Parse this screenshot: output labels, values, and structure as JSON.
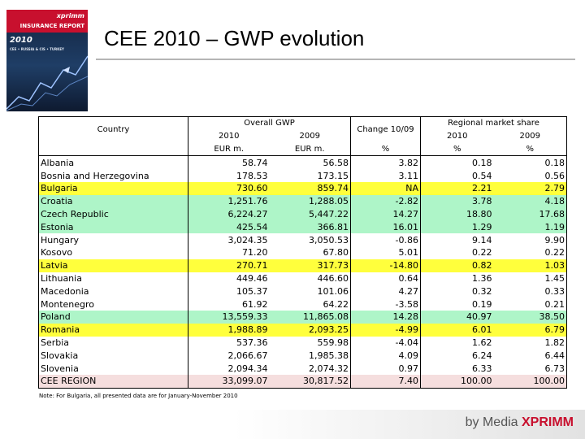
{
  "cover": {
    "brand": "xprimm",
    "title": "INSURANCE REPORT",
    "year": "2010",
    "subtitle": "CEE • RUSSIA & CIS • TURKEY"
  },
  "slide": {
    "title": "CEE 2010 – GWP evolution",
    "note": "Note: For Bulgaria, all presented data are for January-November 2010",
    "footer_prefix": "by Media ",
    "footer_brand": "XPRIMM"
  },
  "table": {
    "header": {
      "country": "Country",
      "overall_gwp": "Overall GWP",
      "change": "Change 10/09",
      "regional_share": "Regional market share",
      "year_2010": "2010",
      "year_2009": "2009",
      "unit_eur": "EUR m.",
      "unit_pct": "%"
    },
    "rows": [
      {
        "country": "Albania",
        "gwp2010": "58.74",
        "gwp2009": "56.58",
        "change": "3.82",
        "share2010": "0.18",
        "share2009": "0.18",
        "highlight": "white"
      },
      {
        "country": "Bosnia and Herzegovina",
        "gwp2010": "178.53",
        "gwp2009": "173.15",
        "change": "3.11",
        "share2010": "0.54",
        "share2009": "0.56",
        "highlight": "white"
      },
      {
        "country": "Bulgaria",
        "gwp2010": "730.60",
        "gwp2009": "859.74",
        "change": "NA",
        "share2010": "2.21",
        "share2009": "2.79",
        "highlight": "yellow"
      },
      {
        "country": "Croatia",
        "gwp2010": "1,251.76",
        "gwp2009": "1,288.05",
        "change": "-2.82",
        "share2010": "3.78",
        "share2009": "4.18",
        "highlight": "green"
      },
      {
        "country": "Czech Republic",
        "gwp2010": "6,224.27",
        "gwp2009": "5,447.22",
        "change": "14.27",
        "share2010": "18.80",
        "share2009": "17.68",
        "highlight": "green"
      },
      {
        "country": "Estonia",
        "gwp2010": "425.54",
        "gwp2009": "366.81",
        "change": "16.01",
        "share2010": "1.29",
        "share2009": "1.19",
        "highlight": "green"
      },
      {
        "country": "Hungary",
        "gwp2010": "3,024.35",
        "gwp2009": "3,050.53",
        "change": "-0.86",
        "share2010": "9.14",
        "share2009": "9.90",
        "highlight": "white"
      },
      {
        "country": "Kosovo",
        "gwp2010": "71.20",
        "gwp2009": "67.80",
        "change": "5.01",
        "share2010": "0.22",
        "share2009": "0.22",
        "highlight": "white"
      },
      {
        "country": "Latvia",
        "gwp2010": "270.71",
        "gwp2009": "317.73",
        "change": "-14.80",
        "share2010": "0.82",
        "share2009": "1.03",
        "highlight": "yellow"
      },
      {
        "country": "Lithuania",
        "gwp2010": "449.46",
        "gwp2009": "446.60",
        "change": "0.64",
        "share2010": "1.36",
        "share2009": "1.45",
        "highlight": "white"
      },
      {
        "country": "Macedonia",
        "gwp2010": "105.37",
        "gwp2009": "101.06",
        "change": "4.27",
        "share2010": "0.32",
        "share2009": "0.33",
        "highlight": "white"
      },
      {
        "country": "Montenegro",
        "gwp2010": "61.92",
        "gwp2009": "64.22",
        "change": "-3.58",
        "share2010": "0.19",
        "share2009": "0.21",
        "highlight": "white"
      },
      {
        "country": "Poland",
        "gwp2010": "13,559.33",
        "gwp2009": "11,865.08",
        "change": "14.28",
        "share2010": "40.97",
        "share2009": "38.50",
        "highlight": "green"
      },
      {
        "country": "Romania",
        "gwp2010": "1,988.89",
        "gwp2009": "2,093.25",
        "change": "-4.99",
        "share2010": "6.01",
        "share2009": "6.79",
        "highlight": "yellow"
      },
      {
        "country": "Serbia",
        "gwp2010": "537.36",
        "gwp2009": "559.98",
        "change": "-4.04",
        "share2010": "1.62",
        "share2009": "1.82",
        "highlight": "white"
      },
      {
        "country": "Slovakia",
        "gwp2010": "2,066.67",
        "gwp2009": "1,985.38",
        "change": "4.09",
        "share2010": "6.24",
        "share2009": "6.44",
        "highlight": "white"
      },
      {
        "country": "Slovenia",
        "gwp2010": "2,094.34",
        "gwp2009": "2,074.32",
        "change": "0.97",
        "share2010": "6.33",
        "share2009": "6.73",
        "highlight": "white"
      },
      {
        "country": "CEE REGION",
        "gwp2010": "33,099.07",
        "gwp2009": "30,817.52",
        "change": "7.40",
        "share2010": "100.00",
        "share2009": "100.00",
        "highlight": "pink"
      }
    ]
  },
  "colors": {
    "yellow_highlight": "#ffff3c",
    "green_highlight": "#aef5c8",
    "pink_highlight": "#f5dede",
    "brand_red": "#c8102e"
  }
}
